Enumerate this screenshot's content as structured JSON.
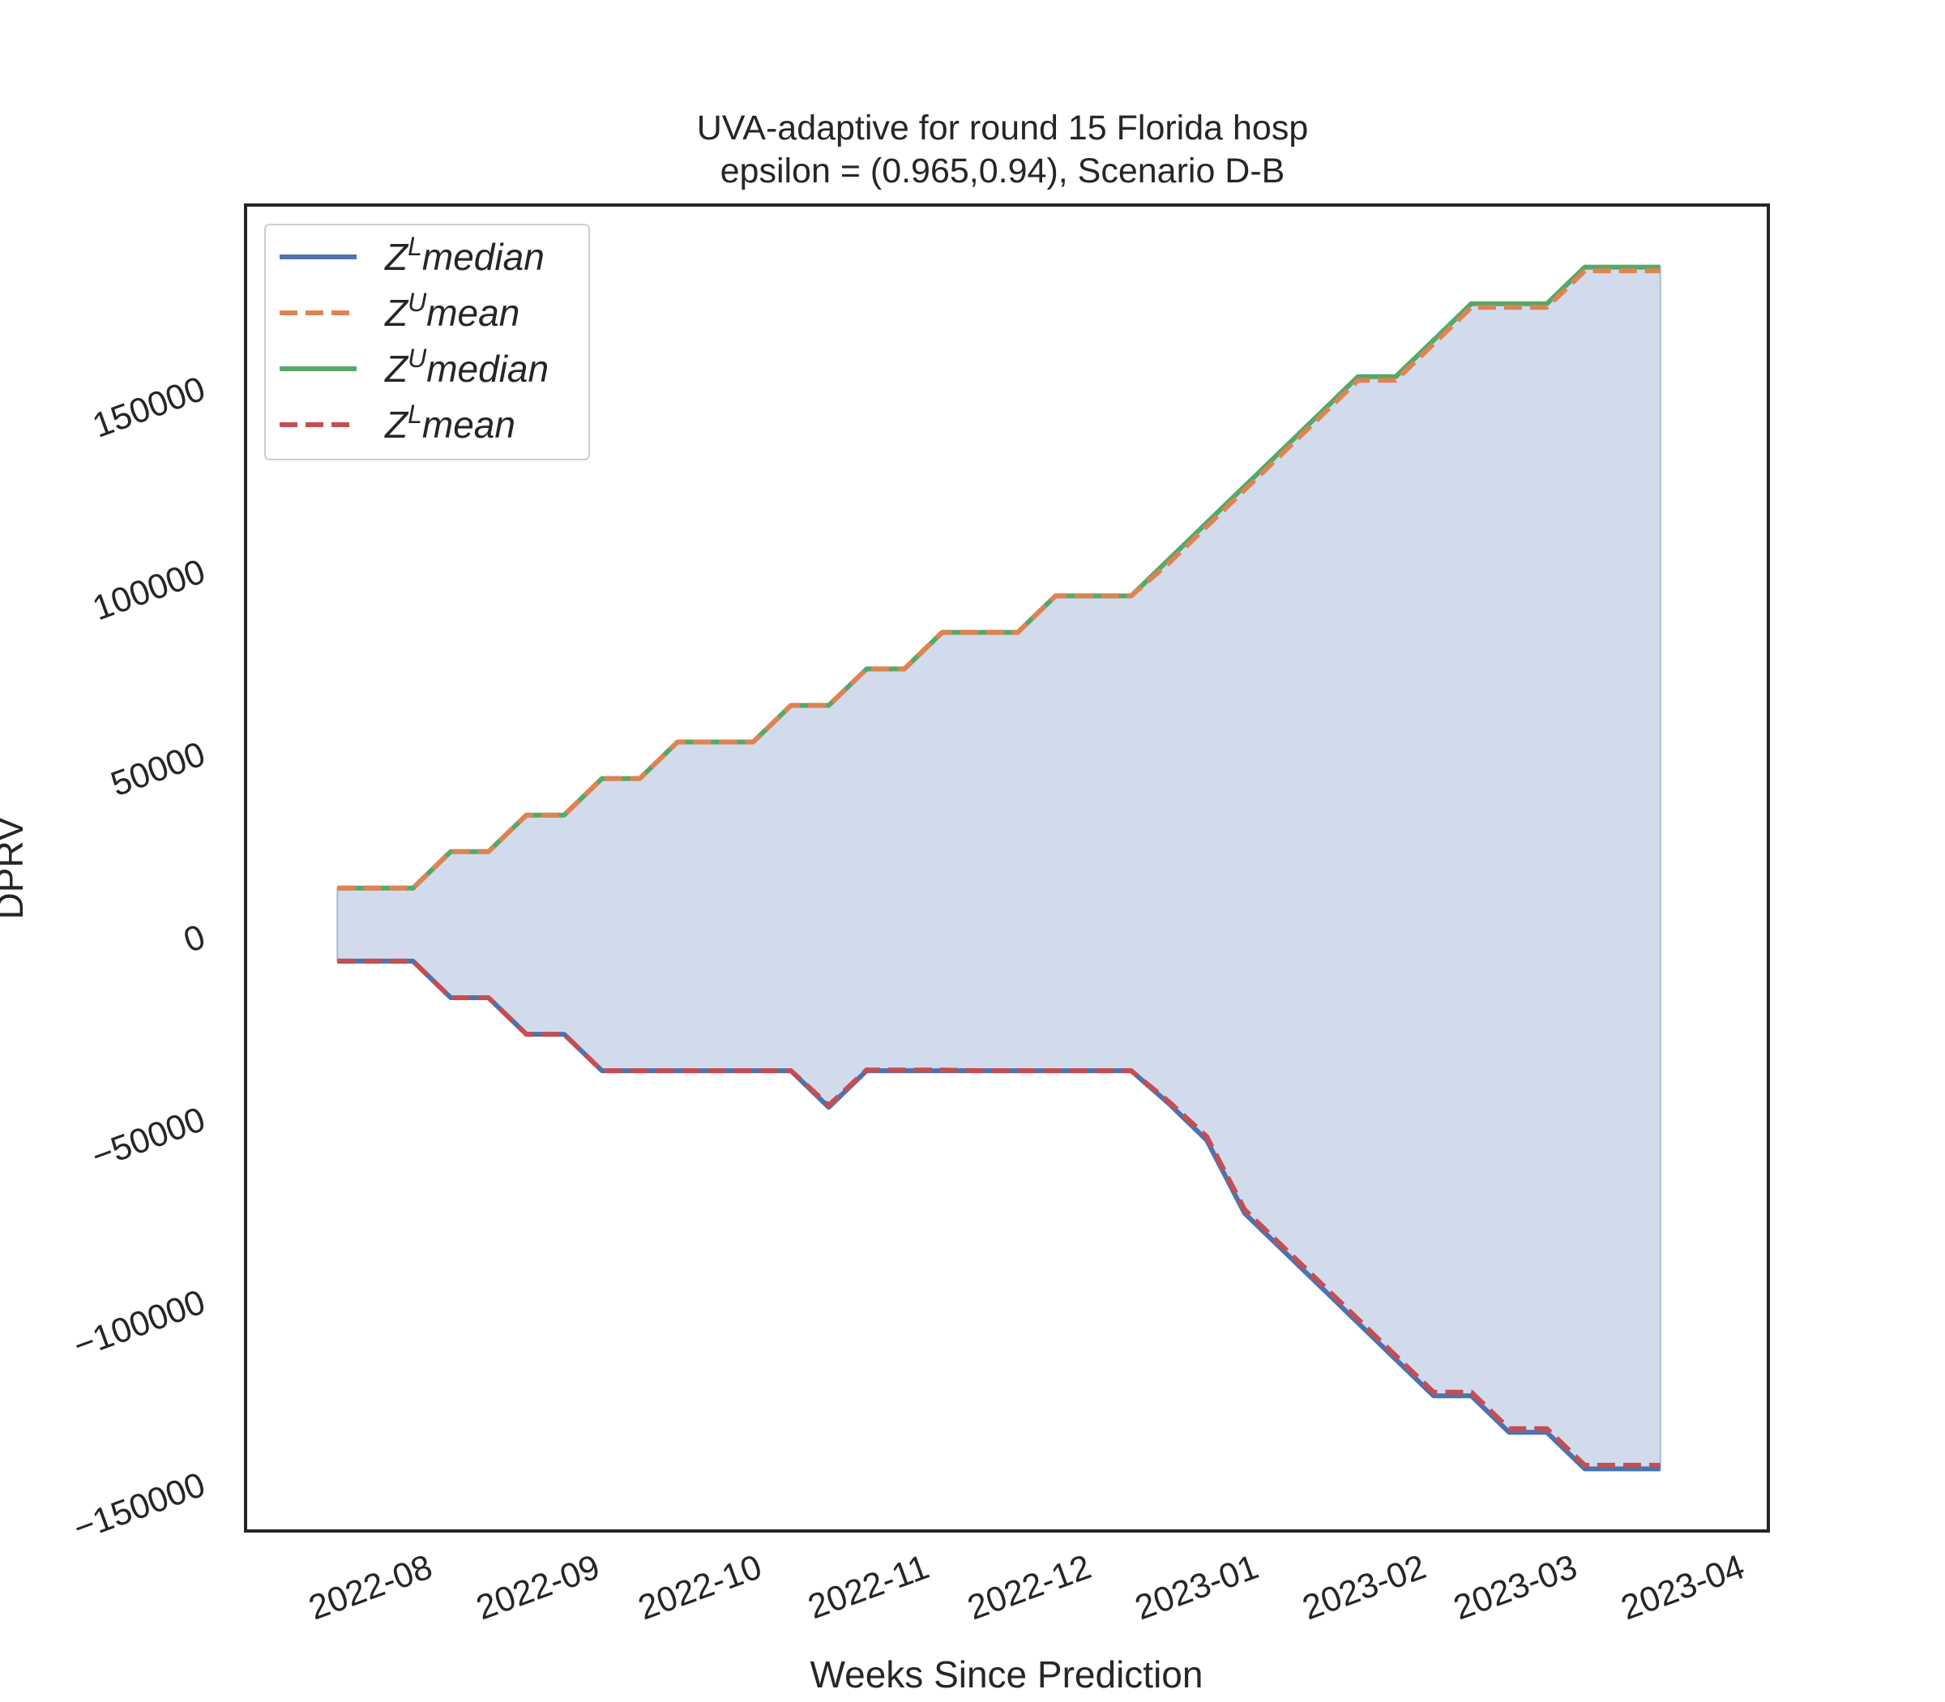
{
  "chart_data": {
    "type": "line",
    "title": "UVA-adaptive for round 15 Florida  hosp",
    "subtitle": "epsilon = (0.965,0.94), Scenario D-B",
    "xlabel": "Weeks Since Prediction",
    "ylabel": "DPRV",
    "x_tick_labels": [
      "2022-08",
      "2022-09",
      "2022-10",
      "2022-11",
      "2022-12",
      "2023-01",
      "2023-02",
      "2023-03",
      "2023-04"
    ],
    "y_tick_labels": [
      "−150000",
      "−100000",
      "−50000",
      "0",
      "50000",
      "100000",
      "150000"
    ],
    "y_tick_values": [
      -150000,
      -100000,
      -50000,
      0,
      50000,
      100000,
      150000
    ],
    "xlim": [
      "2022-07-06",
      "2023-04-14"
    ],
    "ylim": [
      -165000,
      198000
    ],
    "grid": false,
    "legend_position": "upper left",
    "x": [
      "2022-07-23",
      "2022-07-30",
      "2022-08-06",
      "2022-08-13",
      "2022-08-20",
      "2022-08-27",
      "2022-09-03",
      "2022-09-10",
      "2022-09-17",
      "2022-09-24",
      "2022-10-01",
      "2022-10-08",
      "2022-10-15",
      "2022-10-22",
      "2022-10-29",
      "2022-11-05",
      "2022-11-12",
      "2022-11-19",
      "2022-11-26",
      "2022-12-03",
      "2022-12-10",
      "2022-12-17",
      "2022-12-24",
      "2022-12-31",
      "2023-01-07",
      "2023-01-14",
      "2023-01-21",
      "2023-01-28",
      "2023-02-04",
      "2023-02-11",
      "2023-02-18",
      "2023-02-25",
      "2023-03-04",
      "2023-03-11",
      "2023-03-18",
      "2023-03-25"
    ],
    "series": [
      {
        "name": "Z^L median",
        "label_base": "Z",
        "label_sup": "L",
        "label_rest": "median",
        "color": "#4c72b0",
        "dash": "solid",
        "values": [
          -9000,
          -9000,
          -9000,
          -19000,
          -19000,
          -29000,
          -29000,
          -39000,
          -39000,
          -39000,
          -39000,
          -39000,
          -39000,
          -49000,
          -39000,
          -39000,
          -39000,
          -39000,
          -39000,
          -39000,
          -39000,
          -39000,
          -48000,
          -58000,
          -78000,
          -88000,
          -98000,
          -108000,
          -118000,
          -128000,
          -128000,
          -138000,
          -138000,
          -148000,
          -148000,
          -148000
        ]
      },
      {
        "name": "Z^U mean",
        "label_base": "Z",
        "label_sup": "U",
        "label_rest": "mean",
        "color": "#dd8452",
        "dash": "dashed",
        "values": [
          11000,
          11000,
          11000,
          21000,
          21000,
          31000,
          31000,
          41000,
          41000,
          51000,
          51000,
          51000,
          61000,
          61000,
          71000,
          71000,
          81000,
          81000,
          81000,
          91000,
          91000,
          91000,
          100000,
          110000,
          120000,
          130000,
          140000,
          150000,
          150000,
          160000,
          170000,
          170000,
          170000,
          180000,
          180000,
          180000
        ]
      },
      {
        "name": "Z^U median",
        "label_base": "Z",
        "label_sup": "U",
        "label_rest": "median",
        "color": "#55a868",
        "dash": "solid",
        "values": [
          11000,
          11000,
          11000,
          21000,
          21000,
          31000,
          31000,
          41000,
          41000,
          51000,
          51000,
          51000,
          61000,
          61000,
          71000,
          71000,
          81000,
          81000,
          81000,
          91000,
          91000,
          91000,
          101000,
          111000,
          121000,
          131000,
          141000,
          151000,
          151000,
          161000,
          171000,
          171000,
          171000,
          181000,
          181000,
          181000
        ]
      },
      {
        "name": "Z^L mean",
        "label_base": "Z",
        "label_sup": "L",
        "label_rest": "mean",
        "color": "#c44e52",
        "dash": "dashed",
        "values": [
          -9000,
          -9000,
          -9000,
          -19000,
          -19000,
          -29000,
          -29000,
          -39000,
          -39000,
          -39000,
          -39000,
          -39000,
          -39000,
          -48500,
          -38800,
          -38800,
          -38800,
          -39000,
          -39000,
          -39000,
          -39000,
          -39000,
          -47500,
          -57000,
          -77000,
          -87000,
          -97000,
          -107000,
          -117000,
          -127000,
          -127000,
          -137000,
          -137000,
          -147000,
          -147000,
          -147000
        ]
      }
    ],
    "fill_band": {
      "between": [
        "Z^L median",
        "Z^U median"
      ],
      "color": "#d1dbeb",
      "edge_color": "#a9bbd8"
    },
    "axes_color": "#262626"
  }
}
